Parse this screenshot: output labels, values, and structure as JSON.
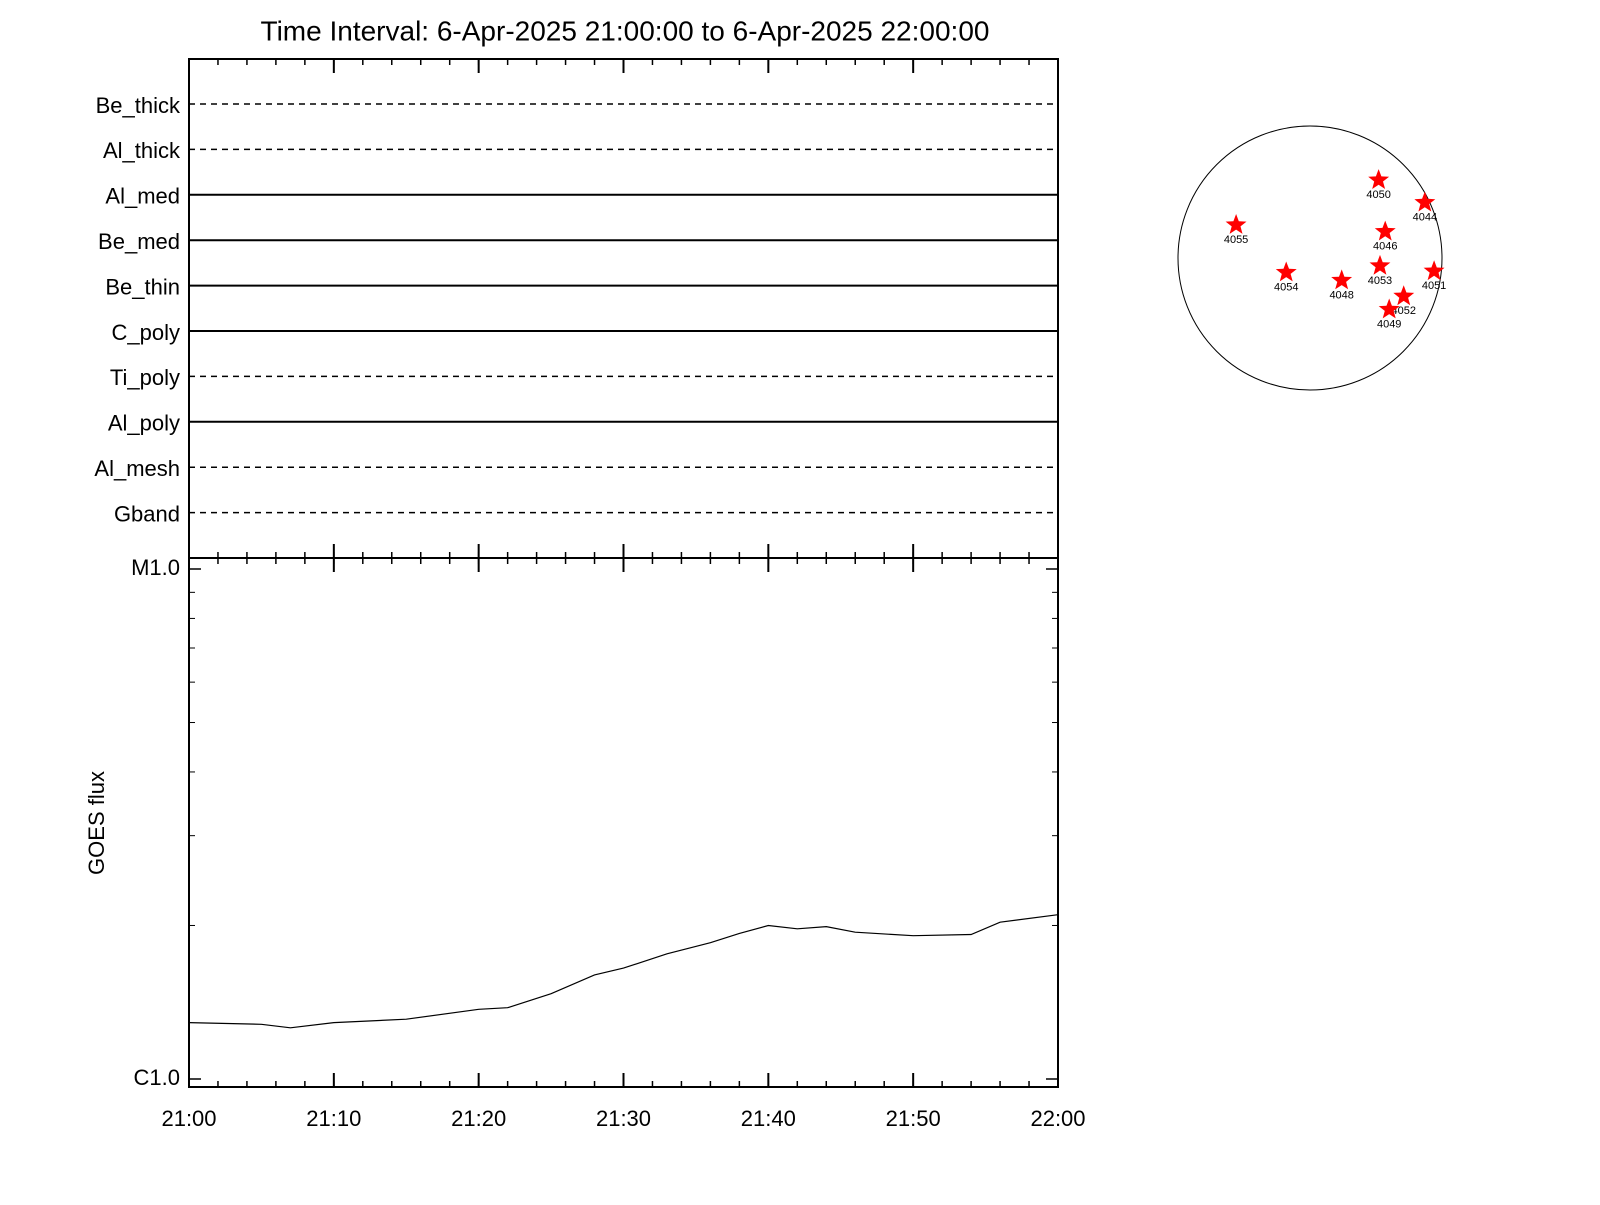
{
  "chart_data": [
    {
      "type": "filter-timeline",
      "title": "Time Interval:  6-Apr-2025 21:00:00 to  6-Apr-2025 22:00:00",
      "rows": [
        {
          "name": "Be_thick",
          "style": "dashed"
        },
        {
          "name": "Al_thick",
          "style": "dashed"
        },
        {
          "name": "Al_med",
          "style": "solid"
        },
        {
          "name": "Be_med",
          "style": "solid"
        },
        {
          "name": "Be_thin",
          "style": "solid"
        },
        {
          "name": "C_poly",
          "style": "solid"
        },
        {
          "name": "Ti_poly",
          "style": "dashed"
        },
        {
          "name": "Al_poly",
          "style": "solid"
        },
        {
          "name": "Al_mesh",
          "style": "dashed"
        },
        {
          "name": "Gband",
          "style": "dashed"
        }
      ]
    },
    {
      "type": "line",
      "y_label": "GOES flux",
      "log_y": true,
      "color": "#000000",
      "x": [
        "21:00",
        "21:05",
        "21:07",
        "21:10",
        "21:15",
        "21:20",
        "21:22",
        "21:25",
        "21:28",
        "21:30",
        "21:33",
        "21:36",
        "21:38",
        "21:40",
        "21:42",
        "21:44",
        "21:46",
        "21:50",
        "21:54",
        "21:56",
        "22:00"
      ],
      "values": [
        1.29e-06,
        1.28e-06,
        1.26e-06,
        1.29e-06,
        1.31e-06,
        1.37e-06,
        1.38e-06,
        1.47e-06,
        1.6e-06,
        1.65e-06,
        1.76e-06,
        1.85e-06,
        1.93e-06,
        2e-06,
        1.97e-06,
        1.99e-06,
        1.94e-06,
        1.91e-06,
        1.92e-06,
        2.03e-06,
        2.1e-06
      ],
      "xlim": [
        "21:00",
        "22:00"
      ],
      "xticks": [
        "21:00",
        "21:10",
        "21:20",
        "21:30",
        "21:40",
        "21:50",
        "22:00"
      ],
      "ylim": [
        1e-06,
        1e-05
      ],
      "yticks": [
        {
          "value": 1e-06,
          "label": "C1.0"
        },
        {
          "value": 1e-05,
          "label": "M1.0"
        }
      ]
    },
    {
      "type": "solar-disk",
      "color": "#ff0000",
      "regions": [
        {
          "name": "4050",
          "x": 0.52,
          "y": 0.59
        },
        {
          "name": "4044",
          "x": 0.87,
          "y": 0.42
        },
        {
          "name": "4055",
          "x": -0.56,
          "y": 0.25
        },
        {
          "name": "4046",
          "x": 0.57,
          "y": 0.2
        },
        {
          "name": "4054",
          "x": -0.18,
          "y": -0.11
        },
        {
          "name": "4048",
          "x": 0.24,
          "y": -0.17
        },
        {
          "name": "4053",
          "x": 0.53,
          "y": -0.06
        },
        {
          "name": "4051",
          "x": 0.94,
          "y": -0.1
        },
        {
          "name": "4052",
          "x": 0.71,
          "y": -0.29
        },
        {
          "name": "4049",
          "x": 0.6,
          "y": -0.39
        }
      ]
    }
  ]
}
